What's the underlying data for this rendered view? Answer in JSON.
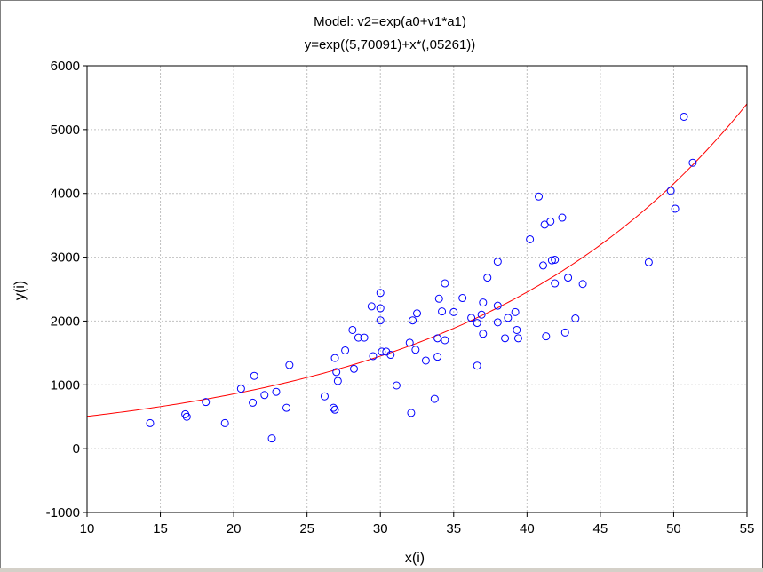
{
  "chart_data": {
    "type": "scatter",
    "title": "Model: v2=exp(a0+v1*a1)",
    "subtitle": "y=exp((5,70091)+x*(,05261))",
    "xlabel": "x(i)",
    "ylabel": "y(i)",
    "xlim": [
      10,
      55
    ],
    "ylim": [
      -1000,
      6000
    ],
    "xticks": [
      10,
      15,
      20,
      25,
      30,
      35,
      40,
      45,
      50,
      55
    ],
    "yticks": [
      -1000,
      0,
      1000,
      2000,
      3000,
      4000,
      5000,
      6000
    ],
    "grid": true,
    "colors": {
      "points": "#0000ff",
      "fit": "#ff0000",
      "grid": "#c0c0c0"
    },
    "fit": {
      "model": "exp",
      "a0": 5.70091,
      "a1": 0.05261
    },
    "points": [
      [
        14.3,
        400
      ],
      [
        16.7,
        540
      ],
      [
        16.8,
        500
      ],
      [
        18.1,
        730
      ],
      [
        19.4,
        400
      ],
      [
        20.5,
        940
      ],
      [
        21.3,
        720
      ],
      [
        21.4,
        1140
      ],
      [
        22.1,
        840
      ],
      [
        22.6,
        160
      ],
      [
        22.9,
        890
      ],
      [
        23.6,
        640
      ],
      [
        23.8,
        1310
      ],
      [
        26.2,
        820
      ],
      [
        26.8,
        640
      ],
      [
        26.9,
        610
      ],
      [
        26.9,
        1420
      ],
      [
        27.0,
        1200
      ],
      [
        27.1,
        1060
      ],
      [
        27.6,
        1540
      ],
      [
        28.1,
        1860
      ],
      [
        28.2,
        1250
      ],
      [
        28.5,
        1740
      ],
      [
        28.9,
        1740
      ],
      [
        29.4,
        2230
      ],
      [
        29.5,
        1450
      ],
      [
        30.0,
        2440
      ],
      [
        30.0,
        2010
      ],
      [
        30.0,
        2200
      ],
      [
        30.1,
        1520
      ],
      [
        30.4,
        1520
      ],
      [
        30.7,
        1470
      ],
      [
        31.1,
        990
      ],
      [
        32.0,
        1660
      ],
      [
        32.1,
        560
      ],
      [
        32.2,
        2010
      ],
      [
        32.4,
        1550
      ],
      [
        32.5,
        2120
      ],
      [
        33.1,
        1380
      ],
      [
        33.7,
        780
      ],
      [
        33.9,
        1440
      ],
      [
        33.9,
        1730
      ],
      [
        34.0,
        2350
      ],
      [
        34.2,
        2150
      ],
      [
        34.4,
        1700
      ],
      [
        34.4,
        2590
      ],
      [
        35.0,
        2140
      ],
      [
        35.6,
        2360
      ],
      [
        36.2,
        2050
      ],
      [
        36.6,
        1300
      ],
      [
        36.6,
        1970
      ],
      [
        36.9,
        2100
      ],
      [
        37.0,
        1800
      ],
      [
        37.0,
        2290
      ],
      [
        37.3,
        2680
      ],
      [
        38.0,
        2930
      ],
      [
        38.0,
        2240
      ],
      [
        38.0,
        1980
      ],
      [
        38.5,
        1730
      ],
      [
        38.7,
        2050
      ],
      [
        39.2,
        2140
      ],
      [
        39.3,
        1860
      ],
      [
        39.4,
        1730
      ],
      [
        40.2,
        3280
      ],
      [
        40.8,
        3950
      ],
      [
        41.1,
        2870
      ],
      [
        41.2,
        3510
      ],
      [
        41.3,
        1760
      ],
      [
        41.6,
        3560
      ],
      [
        41.7,
        2950
      ],
      [
        41.9,
        2960
      ],
      [
        41.9,
        2590
      ],
      [
        42.4,
        3620
      ],
      [
        42.6,
        1820
      ],
      [
        42.8,
        2680
      ],
      [
        43.3,
        2040
      ],
      [
        43.8,
        2580
      ],
      [
        48.3,
        2920
      ],
      [
        49.8,
        4040
      ],
      [
        50.1,
        3760
      ],
      [
        50.7,
        5200
      ],
      [
        51.3,
        4480
      ]
    ]
  }
}
